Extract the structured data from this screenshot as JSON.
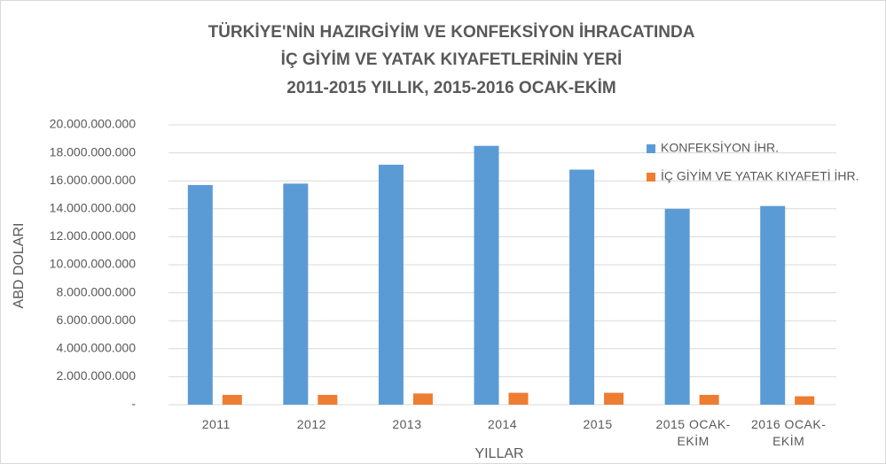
{
  "chart_data": {
    "type": "bar",
    "title": [
      "TÜRKİYE'NİN HAZIRGİYİM VE KONFEKSİYON İHRACATINDA",
      "İÇ GİYİM VE YATAK KIYAFETLERİNİN YERİ",
      "2011-2015 YILLIK, 2015-2016 OCAK-EKİM"
    ],
    "x_label": "YILLAR",
    "y_label": "ABD DOLARI",
    "categories": [
      "2011",
      "2012",
      "2013",
      "2014",
      "2015",
      "2015 OCAK-EKİM",
      "2016 OCAK-EKİM"
    ],
    "series": [
      {
        "name": "KONFEKSİYON İHR.",
        "color": "#5b9bd5",
        "values": [
          15700000000,
          15800000000,
          17150000000,
          18500000000,
          16800000000,
          14000000000,
          14200000000
        ]
      },
      {
        "name": "İÇ GİYİM VE YATAK KIYAFETİ İHR.",
        "color": "#ed7d31",
        "values": [
          700000000,
          700000000,
          800000000,
          850000000,
          850000000,
          700000000,
          600000000
        ]
      }
    ],
    "ylim": [
      0,
      20000000000
    ],
    "yticks": [
      {
        "value": 0,
        "label": "-"
      },
      {
        "value": 2000000000,
        "label": "2.000.000.000"
      },
      {
        "value": 4000000000,
        "label": "4.000.000.000"
      },
      {
        "value": 6000000000,
        "label": "6.000.000.000"
      },
      {
        "value": 8000000000,
        "label": "8.000.000.000"
      },
      {
        "value": 10000000000,
        "label": "10.000.000.000"
      },
      {
        "value": 12000000000,
        "label": "12.000.000.000"
      },
      {
        "value": 14000000000,
        "label": "14.000.000.000"
      },
      {
        "value": 16000000000,
        "label": "16.000.000.000"
      },
      {
        "value": 18000000000,
        "label": "18.000.000.000"
      },
      {
        "value": 20000000000,
        "label": "20.000.000.000"
      }
    ],
    "grid": true,
    "legend": "right"
  }
}
